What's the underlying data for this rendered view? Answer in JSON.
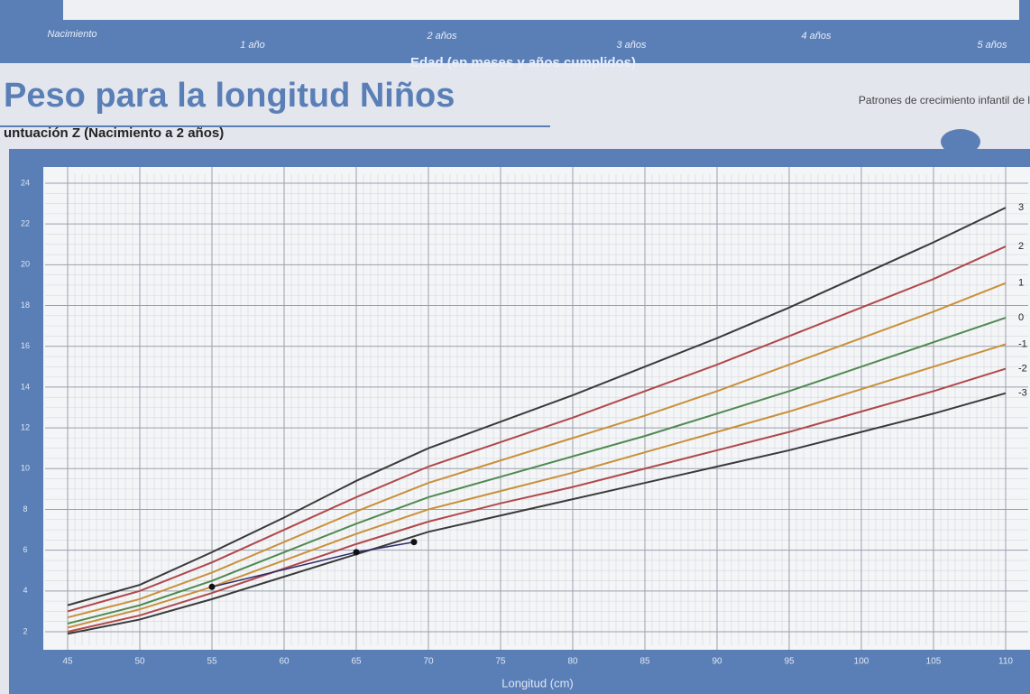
{
  "chart_data": {
    "type": "line",
    "title": "Peso para la longitud Niños",
    "subtitle": "untuación Z (Nacimiento a 2 años)",
    "source": "Patrones de crecimiento infantil de l",
    "top_axis_label": "Edad (en meses y años cumplidos)",
    "top_labels": [
      "Nacimiento",
      "1 año",
      "2 años",
      "3 años",
      "4 años",
      "5 años"
    ],
    "x_label": "Longitud (cm)",
    "x": [
      45,
      50,
      55,
      60,
      65,
      70,
      75,
      80,
      85,
      90,
      95,
      100,
      105,
      110
    ],
    "xlim": [
      45,
      110
    ],
    "xticks": [
      45,
      50,
      55,
      60,
      65,
      70,
      75,
      80,
      85,
      90,
      95,
      100,
      105,
      110
    ],
    "ylim": [
      2,
      24
    ],
    "yticks": [
      2,
      4,
      6,
      8,
      10,
      12,
      14,
      16,
      18,
      20,
      22,
      24
    ],
    "grid": true,
    "series": [
      {
        "name": "3",
        "color": "#3a3a3a",
        "values": [
          3.3,
          4.3,
          5.9,
          7.6,
          9.4,
          11.0,
          12.3,
          13.6,
          15.0,
          16.4,
          17.9,
          19.5,
          21.1,
          22.8
        ]
      },
      {
        "name": "2",
        "color": "#b0484a",
        "values": [
          3.0,
          4.0,
          5.4,
          7.0,
          8.6,
          10.1,
          11.3,
          12.5,
          13.8,
          15.1,
          16.5,
          17.9,
          19.3,
          20.9
        ]
      },
      {
        "name": "1",
        "color": "#c9903a",
        "values": [
          2.7,
          3.6,
          4.9,
          6.4,
          7.9,
          9.3,
          10.4,
          11.5,
          12.6,
          13.8,
          15.1,
          16.4,
          17.7,
          19.1
        ]
      },
      {
        "name": "0",
        "color": "#4f8a50",
        "values": [
          2.4,
          3.3,
          4.5,
          5.9,
          7.3,
          8.6,
          9.6,
          10.6,
          11.6,
          12.7,
          13.8,
          15.0,
          16.2,
          17.4
        ]
      },
      {
        "name": "-1",
        "color": "#c9903a",
        "values": [
          2.2,
          3.1,
          4.2,
          5.5,
          6.8,
          8.0,
          8.9,
          9.8,
          10.8,
          11.8,
          12.8,
          13.9,
          15.0,
          16.1
        ]
      },
      {
        "name": "-2",
        "color": "#b0484a",
        "values": [
          2.0,
          2.8,
          3.9,
          5.1,
          6.3,
          7.4,
          8.3,
          9.1,
          10.0,
          10.9,
          11.8,
          12.8,
          13.8,
          14.9
        ]
      },
      {
        "name": "-3",
        "color": "#3a3a3a",
        "values": [
          1.9,
          2.6,
          3.6,
          4.7,
          5.8,
          6.9,
          7.7,
          8.5,
          9.3,
          10.1,
          10.9,
          11.8,
          12.7,
          13.7
        ]
      }
    ],
    "points": {
      "color": "#2a2a6a",
      "x": [
        55,
        65,
        69
      ],
      "values": [
        4.2,
        5.9,
        6.4
      ]
    }
  }
}
